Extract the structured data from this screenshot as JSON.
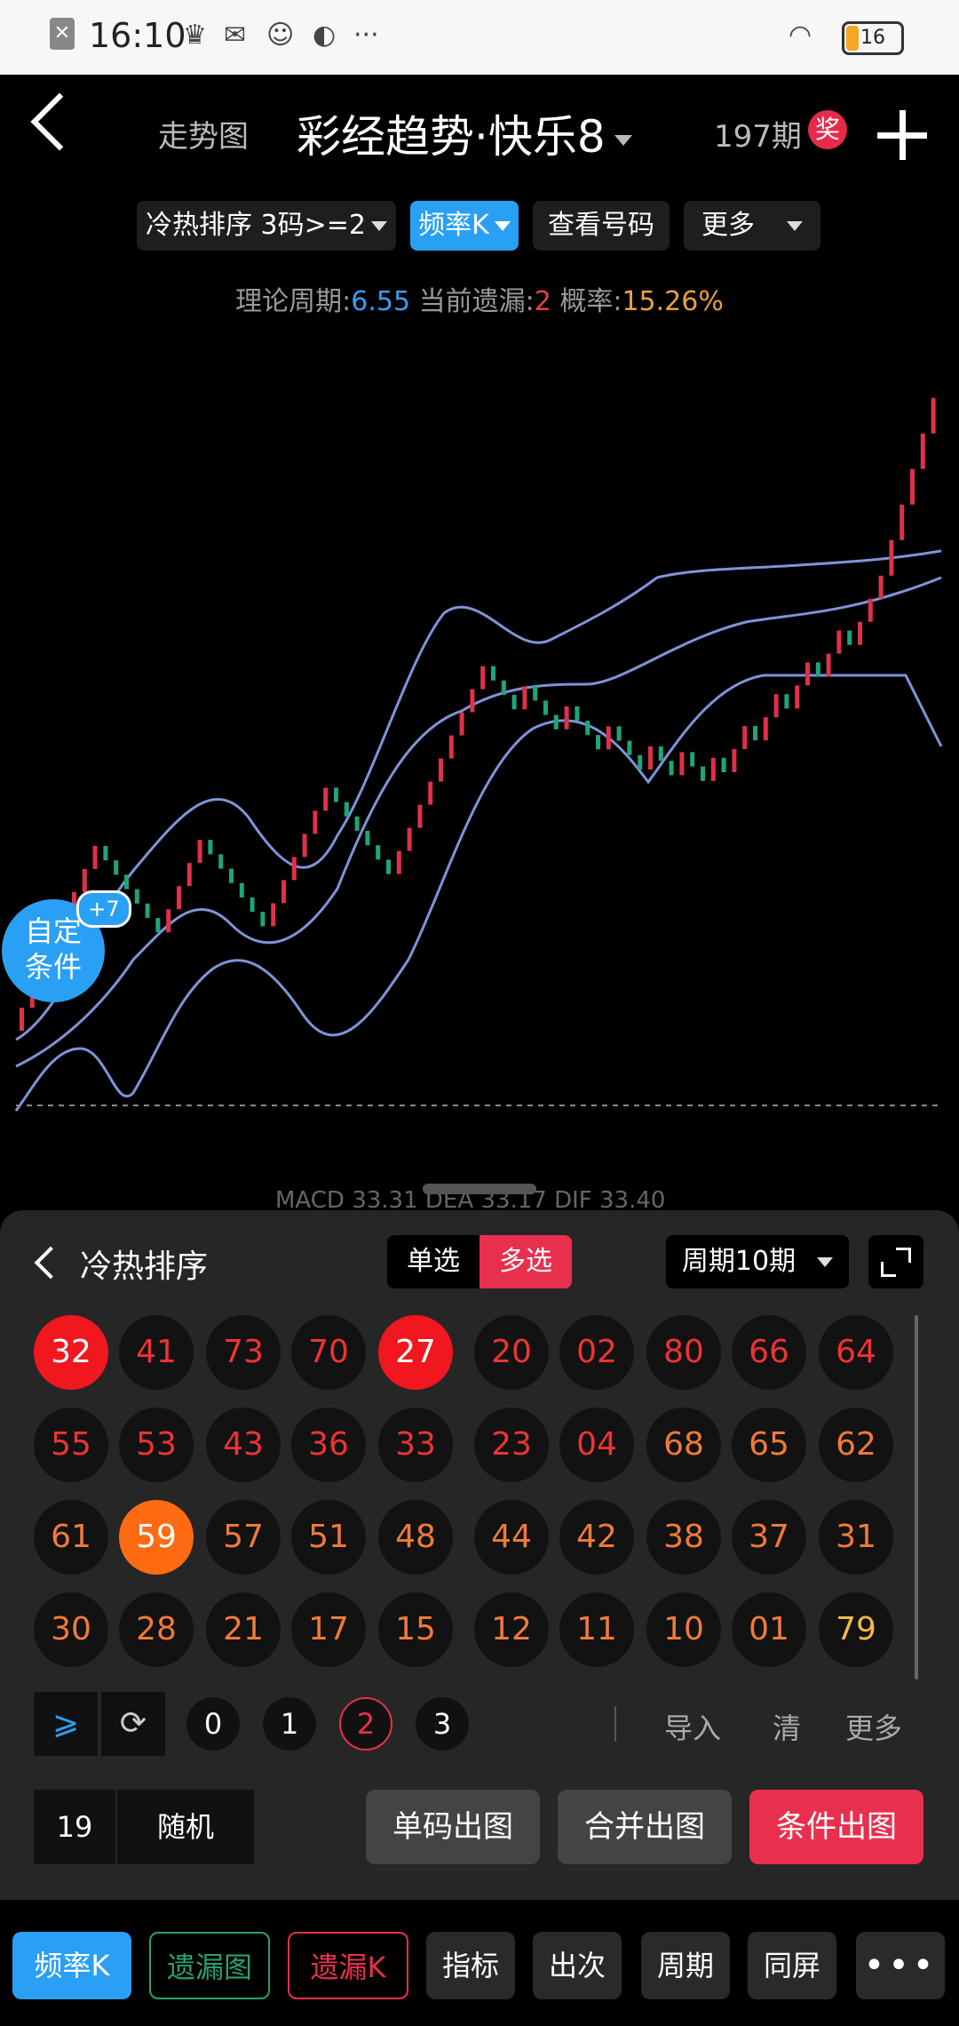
{
  "status_bar": {
    "time": "16:10",
    "battery": "16"
  },
  "header": {
    "trend_link": "走势图",
    "title": "彩经趋势·快乐8",
    "issue": "197期",
    "award": "奖"
  },
  "filters": {
    "hot_cold": "冷热排序 3码>=2",
    "freq_k": "频率K",
    "view_numbers": "查看号码",
    "more": "更多"
  },
  "stats": {
    "period_label": "理论周期:",
    "period_value": "6.55",
    "miss_label": "当前遗漏:",
    "miss_value": "2",
    "prob_label": "概率:",
    "prob_value": "15.26%"
  },
  "bubble": {
    "line1": "自定",
    "line2": "条件",
    "badge": "+7"
  },
  "macd_text": "MACD 33.31 DEA 33.17 DIF 33.40",
  "panel": {
    "title": "冷热排序",
    "single": "单选",
    "multi": "多选",
    "period": "周期10期",
    "balls": [
      [
        "32",
        "41",
        "73",
        "70",
        "27",
        "20",
        "02",
        "80",
        "66",
        "64"
      ],
      [
        "55",
        "53",
        "43",
        "36",
        "33",
        "23",
        "04",
        "68",
        "65",
        "62"
      ],
      [
        "61",
        "59",
        "57",
        "51",
        "48",
        "44",
        "42",
        "38",
        "37",
        "31"
      ],
      [
        "30",
        "28",
        "21",
        "17",
        "15",
        "12",
        "11",
        "10",
        "01",
        "79"
      ]
    ],
    "ge_symbol": "⩾",
    "refresh_symbol": "⟳",
    "counts": [
      "0",
      "1",
      "2",
      "3"
    ],
    "import": "导入",
    "clear": "清",
    "more": "更多",
    "random_count": "19",
    "random": "随机",
    "single_chart": "单码出图",
    "merge_chart": "合并出图",
    "cond_chart": "条件出图"
  },
  "tabs": [
    "频率K",
    "遗漏图",
    "遗漏K",
    "指标",
    "出次",
    "周期",
    "同屏",
    "•••"
  ],
  "colors": {
    "accent_blue": "#2aa0f5",
    "accent_red": "#e8304e",
    "candle_up": "#e0304a",
    "candle_down": "#1ea57a",
    "band_line": "#7f93d8"
  }
}
